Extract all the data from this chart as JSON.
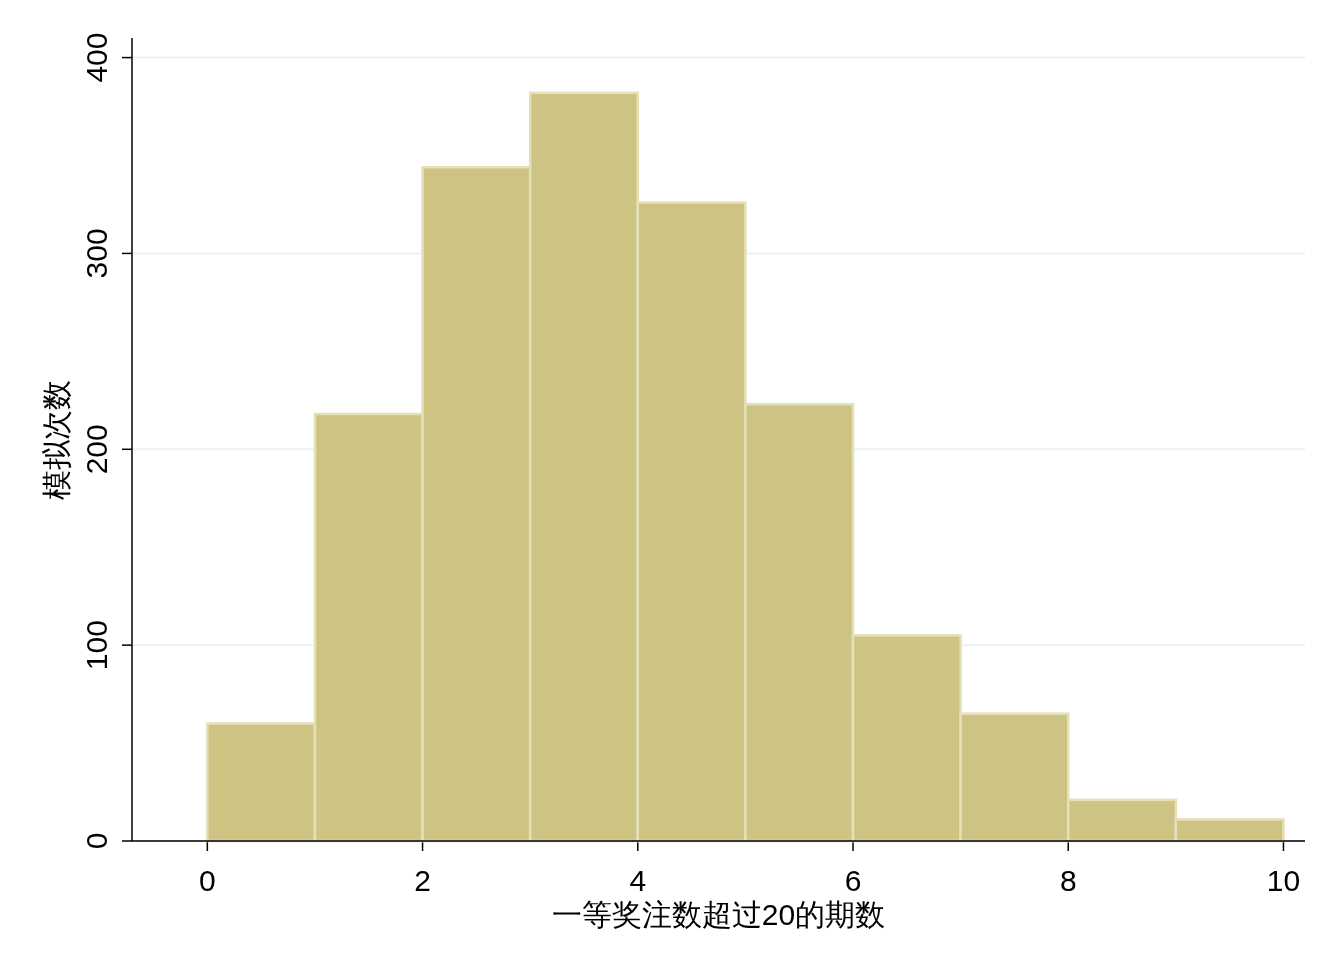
{
  "chart_data": {
    "type": "histogram",
    "xlabel": "一等奖注数超过20的期数",
    "ylabel": "模拟次数",
    "bins": [
      0,
      1,
      2,
      3,
      4,
      5,
      6,
      7,
      8,
      9,
      10
    ],
    "values": [
      60,
      218,
      344,
      382,
      326,
      223,
      105,
      65,
      21,
      11
    ],
    "color": "#cdc382",
    "xlim": [
      -0.7,
      10.2
    ],
    "ylim": [
      0,
      410
    ],
    "xticks": [
      0,
      2,
      4,
      6,
      8,
      10
    ],
    "yticks": [
      0,
      100,
      200,
      300,
      400
    ],
    "grid": "y"
  }
}
